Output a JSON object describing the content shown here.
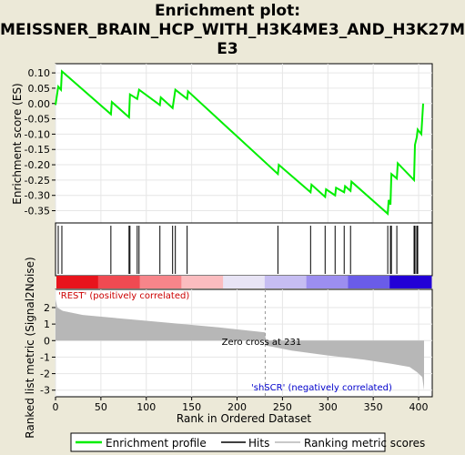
{
  "chart_data": {
    "type": "line",
    "title_lines": [
      "Enrichment plot:",
      "MEISSNER_BRAIN_HCP_WITH_H3K4ME3_AND_H3K27M",
      "E3"
    ],
    "es_panel": {
      "ylabel": "Enrichment score (ES)",
      "ylim": [
        -0.39,
        0.13
      ],
      "yticks": [
        "0.10",
        "0.05",
        "0.00",
        "-0.05",
        "-0.10",
        "-0.15",
        "-0.20",
        "-0.25",
        "-0.30",
        "-0.35"
      ],
      "ytick_values": [
        0.1,
        0.05,
        0.0,
        -0.05,
        -0.1,
        -0.15,
        -0.2,
        -0.25,
        -0.3,
        -0.35
      ],
      "series_name": "Enrichment profile",
      "color": "#00ee00",
      "points": [
        [
          0,
          -0.005
        ],
        [
          3,
          0.055
        ],
        [
          6,
          0.045
        ],
        [
          7,
          0.105
        ],
        [
          61,
          -0.035
        ],
        [
          62,
          0.005
        ],
        [
          81,
          -0.045
        ],
        [
          82,
          0.03
        ],
        [
          90,
          0.015
        ],
        [
          92,
          0.045
        ],
        [
          115,
          -0.005
        ],
        [
          116,
          0.02
        ],
        [
          129,
          -0.015
        ],
        [
          132,
          0.045
        ],
        [
          145,
          0.015
        ],
        [
          146,
          0.04
        ],
        [
          245,
          -0.23
        ],
        [
          246,
          -0.2
        ],
        [
          281,
          -0.29
        ],
        [
          282,
          -0.265
        ],
        [
          297,
          -0.305
        ],
        [
          298,
          -0.28
        ],
        [
          308,
          -0.3
        ],
        [
          309,
          -0.275
        ],
        [
          318,
          -0.29
        ],
        [
          319,
          -0.27
        ],
        [
          325,
          -0.285
        ],
        [
          326,
          -0.255
        ],
        [
          366,
          -0.36
        ],
        [
          367,
          -0.315
        ],
        [
          369,
          -0.33
        ],
        [
          370,
          -0.23
        ],
        [
          376,
          -0.245
        ],
        [
          377,
          -0.195
        ],
        [
          395,
          -0.25
        ],
        [
          396,
          -0.135
        ],
        [
          398,
          -0.11
        ],
        [
          399,
          -0.085
        ],
        [
          403,
          -0.1
        ],
        [
          405,
          0.0
        ]
      ]
    },
    "hits": {
      "name": "Hits",
      "positions": [
        3,
        7,
        61,
        81,
        82,
        90,
        92,
        115,
        129,
        132,
        145,
        245,
        281,
        297,
        308,
        318,
        325,
        366,
        369,
        370,
        376,
        395,
        396,
        398,
        399
      ]
    },
    "ranked_metric": {
      "ylabel": "Ranked list metric (Signal2Noise)",
      "ylim": [
        -3.4,
        3.1
      ],
      "yticks": [
        "2",
        "1",
        "0",
        "-1",
        "-2",
        "-3"
      ],
      "ytick_values": [
        2,
        1,
        0,
        -1,
        -2,
        -3
      ],
      "series_name": "Ranking metric scores",
      "color": "#b7b7b7",
      "profile": [
        [
          0,
          2.5
        ],
        [
          2,
          2.0
        ],
        [
          8,
          1.8
        ],
        [
          30,
          1.55
        ],
        [
          60,
          1.4
        ],
        [
          100,
          1.2
        ],
        [
          140,
          1.0
        ],
        [
          180,
          0.8
        ],
        [
          231,
          0.5
        ],
        [
          232,
          -0.3
        ],
        [
          260,
          -0.6
        ],
        [
          300,
          -0.9
        ],
        [
          340,
          -1.15
        ],
        [
          370,
          -1.4
        ],
        [
          390,
          -1.6
        ],
        [
          398,
          -1.9
        ],
        [
          404,
          -2.2
        ],
        [
          406,
          -3.0
        ]
      ],
      "zero_cross_label": "Zero cross at 231",
      "zero_cross": 231,
      "pos_label": "'REST' (positively correlated)",
      "neg_label": "'shSCR' (negatively correlated)",
      "pos_color": "#cc0000",
      "neg_color": "#0000cc"
    },
    "xaxis": {
      "xlabel": "Rank in Ordered Dataset",
      "xlim": [
        0,
        415
      ],
      "xticks": [
        "0",
        "50",
        "100",
        "150",
        "200",
        "250",
        "300",
        "350",
        "400"
      ],
      "xtick_values": [
        0,
        50,
        100,
        150,
        200,
        250,
        300,
        350,
        400
      ]
    },
    "legend": [
      {
        "label": "Enrichment profile",
        "color": "#00ee00"
      },
      {
        "label": "Hits",
        "color": "#000000"
      },
      {
        "label": "Ranking metric scores",
        "color": "#b7b7b7"
      }
    ],
    "colorbar_colors": [
      "#e8141c",
      "#f04a52",
      "#f7858a",
      "#fbbcbf",
      "#e8e4f5",
      "#c6bdf2",
      "#9c8ef0",
      "#6a5ce8",
      "#2200d6"
    ]
  }
}
